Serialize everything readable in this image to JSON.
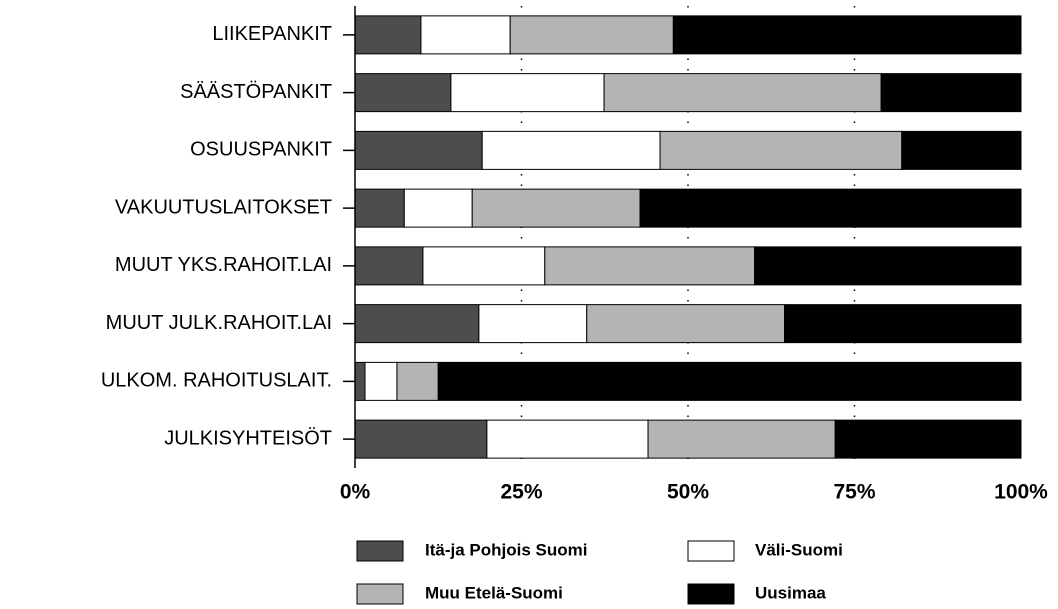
{
  "chart_data": {
    "type": "stacked_barh",
    "categories": [
      "LIIKEPANKIT",
      "SÄÄSTÖPANKIT",
      "OSUUSPANKIT",
      "VAKUUTUSLAITOKSET",
      "MUUT YKS.RAHOIT.LAI",
      "MUUT JULK.RAHOIT.LAI",
      "ULKOM. RAHOITUSLAIT.",
      "JULKISYHTEISÖT"
    ],
    "series": [
      {
        "name": "Itä-ja Pohjois Suomi",
        "color": "#4d4d4d",
        "values": [
          9.9,
          14.4,
          19.1,
          7.4,
          10.2,
          18.6,
          1.5,
          19.8
        ]
      },
      {
        "name": "Väli-Suomi",
        "color": "#ffffff",
        "values": [
          13.4,
          23.0,
          26.7,
          10.2,
          18.3,
          16.2,
          4.8,
          24.2
        ]
      },
      {
        "name": "Muu Etelä-Suomi",
        "color": "#b4b4b4",
        "values": [
          24.5,
          41.6,
          36.3,
          25.2,
          31.5,
          29.7,
          6.2,
          28.1
        ]
      },
      {
        "name": "Uusimaa",
        "color": "#000000",
        "values": [
          52.2,
          21.0,
          17.9,
          57.2,
          40.0,
          35.5,
          87.5,
          27.9
        ]
      }
    ],
    "xlim": [
      0,
      100
    ],
    "xticks": [
      {
        "value": 0,
        "label": "0%"
      },
      {
        "value": 25,
        "label": "25%"
      },
      {
        "value": 50,
        "label": "50%"
      },
      {
        "value": 75,
        "label": "75%"
      },
      {
        "value": 100,
        "label": "100%"
      }
    ],
    "grid": true
  }
}
